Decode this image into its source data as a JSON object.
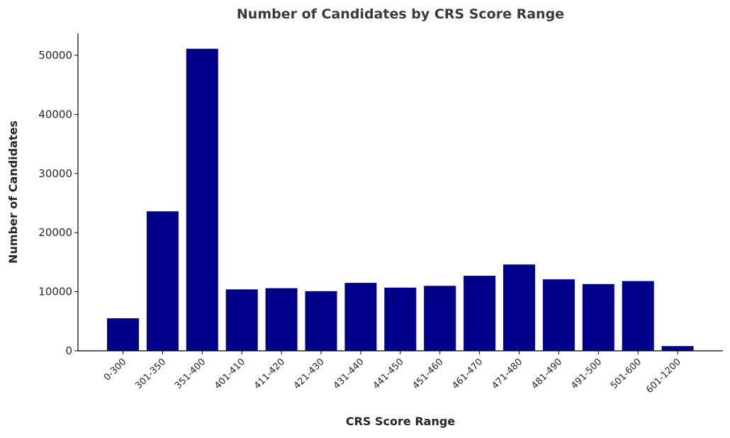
{
  "chart_data": {
    "type": "bar",
    "title": "Number of Candidates by CRS Score Range",
    "xlabel": "CRS Score Range",
    "ylabel": "Number of Candidates",
    "categories": [
      "0-300",
      "301-350",
      "351-400",
      "401-410",
      "411-420",
      "421-430",
      "431-440",
      "441-450",
      "451-460",
      "461-470",
      "471-480",
      "481-490",
      "491-500",
      "501-600",
      "601-1200"
    ],
    "values": [
      5500,
      23600,
      51100,
      10400,
      10600,
      10100,
      11500,
      10700,
      11000,
      12700,
      14600,
      12100,
      11300,
      11800,
      800
    ],
    "ylim": [
      0,
      54000
    ],
    "yticks": [
      0,
      10000,
      20000,
      30000,
      40000,
      50000
    ],
    "grid": false,
    "colors": {
      "bar": "#00008b",
      "axis": "#000000"
    }
  }
}
